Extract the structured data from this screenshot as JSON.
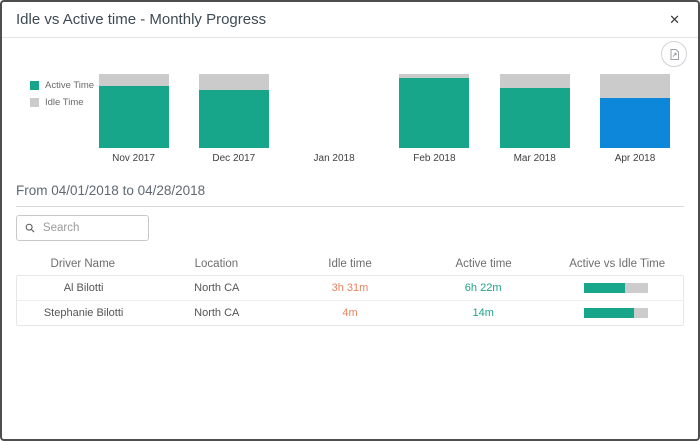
{
  "dialog": {
    "title": "Idle vs Active time - Monthly Progress",
    "close_glyph": "✕"
  },
  "chart_data": {
    "type": "bar",
    "stacked": true,
    "normalized_percent": true,
    "categories": [
      "Nov 2017",
      "Dec 2017",
      "Jan 2018",
      "Feb 2018",
      "Mar 2018",
      "Apr 2018"
    ],
    "series": [
      {
        "name": "Active Time",
        "color": "#18a68a",
        "values": [
          84,
          79,
          null,
          94,
          81,
          68
        ]
      },
      {
        "name": "Idle Time",
        "color": "#cbcbcb",
        "values": [
          16,
          21,
          null,
          6,
          19,
          32
        ]
      }
    ],
    "highlight": {
      "category": "Apr 2018",
      "color": "#0d87d9"
    },
    "legend_position": "left",
    "xlabel": "",
    "ylabel": ""
  },
  "period": {
    "label": "From 04/01/2018 to 04/28/2018"
  },
  "search": {
    "placeholder": "Search"
  },
  "table": {
    "columns": [
      "Driver Name",
      "Location",
      "Idle time",
      "Active time",
      "Active vs Idle Time"
    ],
    "rows": [
      {
        "driver": "Al Bilotti",
        "location": "North CA",
        "idle": "3h 31m",
        "active": "6h 22m",
        "active_pct": 64
      },
      {
        "driver": "Stephanie Bilotti",
        "location": "North CA",
        "idle": "4m",
        "active": "14m",
        "active_pct": 78
      }
    ]
  },
  "colors": {
    "active_teal": "#18a68a",
    "idle_gray": "#cbcbcb",
    "highlight_blue": "#0d87d9",
    "idle_text": "#e8835f",
    "active_text": "#1ea289",
    "progress_bg": "#cccccc"
  }
}
